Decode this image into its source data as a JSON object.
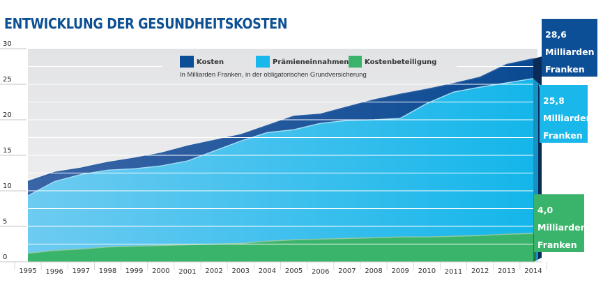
{
  "chart_data": {
    "type": "area",
    "title": "ENTWICKLUNG DER GESUNDHEITSKOSTEN",
    "subtitle": "In Milliarden Franken, in der obligatorischen Grundversicherung",
    "xlabel": "",
    "ylabel": "",
    "ylim": [
      0,
      30
    ],
    "yticks": [
      "0",
      "5",
      "10",
      "15",
      "20",
      "25",
      "30"
    ],
    "grid": true,
    "legend_position": "top-center",
    "categories": [
      "1995",
      "1996",
      "1997",
      "1998",
      "1999",
      "2000",
      "2001",
      "2002",
      "2003",
      "2004",
      "2005",
      "2006",
      "2007",
      "2008",
      "2009",
      "2010",
      "2011",
      "2012",
      "2013",
      "2014"
    ],
    "series": [
      {
        "name": "Kosten",
        "color": "#0d4f96",
        "values": [
          11.3,
          12.6,
          13.2,
          14.0,
          14.6,
          15.3,
          16.3,
          17.1,
          17.9,
          19.2,
          20.5,
          20.8,
          21.8,
          22.8,
          23.6,
          24.3,
          25.1,
          26.0,
          27.8,
          28.6
        ]
      },
      {
        "name": "Prämieneinnahmen",
        "color": "#1ab7ea",
        "values": [
          9.3,
          11.3,
          12.3,
          12.9,
          13.1,
          13.5,
          14.2,
          15.6,
          17.0,
          18.2,
          18.6,
          19.5,
          19.9,
          20.0,
          20.2,
          22.3,
          23.9,
          24.6,
          25.2,
          25.8
        ]
      },
      {
        "name": "Kostenbeteiligung",
        "color": "#3bb46b",
        "values": [
          1.2,
          1.6,
          1.8,
          2.1,
          2.2,
          2.3,
          2.4,
          2.5,
          2.6,
          2.9,
          3.1,
          3.2,
          3.3,
          3.4,
          3.5,
          3.5,
          3.6,
          3.7,
          3.9,
          4.0
        ]
      }
    ],
    "annotations": [
      {
        "series": "Kosten",
        "value": "28,6",
        "line1": "Milliarden",
        "line2": "Franken"
      },
      {
        "series": "Prämieneinnahmen",
        "value": "25,8",
        "line1": "Milliarden",
        "line2": "Franken"
      },
      {
        "series": "Kostenbeteiligung",
        "value": "4,0",
        "line1": "Milliarden",
        "line2": "Franken"
      }
    ]
  },
  "colors": {
    "title": "#0c4f93",
    "background_panel": "#e6e7e9"
  }
}
